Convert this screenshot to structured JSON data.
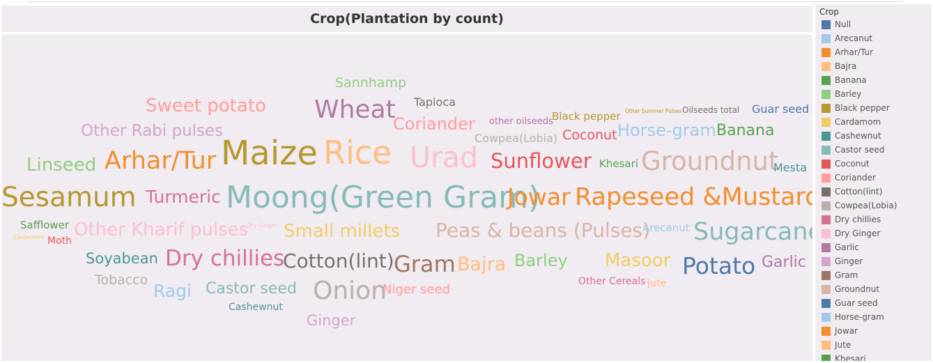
{
  "chart_data": {
    "type": "wordcloud",
    "title": "Crop(Plantation by count)",
    "words": [
      {
        "text": "Sannhamp",
        "color": "#8cd17d"
      },
      {
        "text": "Tapioca",
        "color": "#79706e"
      },
      {
        "text": "Sweet potato",
        "color": "#ff9d9a"
      },
      {
        "text": "Wheat",
        "color": "#b07aa1"
      },
      {
        "text": "Coriander",
        "color": "#ff9d9a"
      },
      {
        "text": "other oilseeds",
        "color": "#b07aa1"
      },
      {
        "text": "Black pepper",
        "color": "#b6992d"
      },
      {
        "text": "Other Summer Pulses",
        "color": "#b6992d"
      },
      {
        "text": "Oilseeds total",
        "color": "#79706e"
      },
      {
        "text": "Guar seed",
        "color": "#4e79a7"
      },
      {
        "text": "Other Rabi pulses",
        "color": "#d4a6c8"
      },
      {
        "text": "Cowpea(Lobia)",
        "color": "#bab0ac"
      },
      {
        "text": "Coconut",
        "color": "#e15759"
      },
      {
        "text": "Horse-gram",
        "color": "#a0cbe8"
      },
      {
        "text": "Banana",
        "color": "#59a14f"
      },
      {
        "text": "Linseed",
        "color": "#8cd17d"
      },
      {
        "text": "Arhar/Tur",
        "color": "#f28e2b"
      },
      {
        "text": "Maize",
        "color": "#b6992d"
      },
      {
        "text": "Rice",
        "color": "#ffbe7d"
      },
      {
        "text": "Urad",
        "color": "#fabfd2"
      },
      {
        "text": "Sunflower",
        "color": "#e15759"
      },
      {
        "text": "Khesari",
        "color": "#59a14f"
      },
      {
        "text": "Groundnut",
        "color": "#d7b5a6"
      },
      {
        "text": "Mesta",
        "color": "#499894"
      },
      {
        "text": "Sesamum",
        "color": "#b6992d"
      },
      {
        "text": "Turmeric",
        "color": "#d37295"
      },
      {
        "text": "Moong(Green Gram)",
        "color": "#86bcb6"
      },
      {
        "text": "Jowar",
        "color": "#f28e2b"
      },
      {
        "text": "Rapeseed &Mustard",
        "color": "#f28e2b"
      },
      {
        "text": "Safflower",
        "color": "#59a14f"
      },
      {
        "text": "Cardamom",
        "color": "#f1ce63"
      },
      {
        "text": "Moth",
        "color": "#e15759"
      },
      {
        "text": "Other Kharif pulses",
        "color": "#fabfd2"
      },
      {
        "text": "Dry Ginger",
        "color": "#fabfd2"
      },
      {
        "text": "Small millets",
        "color": "#f1ce63"
      },
      {
        "text": "Peas & beans (Pulses)",
        "color": "#d7b5a6"
      },
      {
        "text": "Arecanut",
        "color": "#a0cbe8"
      },
      {
        "text": "Sugarcane",
        "color": "#86bcb6"
      },
      {
        "text": "Soyabean",
        "color": "#499894"
      },
      {
        "text": "Dry chillies",
        "color": "#d37295"
      },
      {
        "text": "Cotton(lint)",
        "color": "#79706e"
      },
      {
        "text": "Gram",
        "color": "#9d7660"
      },
      {
        "text": "Bajra",
        "color": "#ffbe7d"
      },
      {
        "text": "Barley",
        "color": "#8cd17d"
      },
      {
        "text": "Masoor",
        "color": "#f1ce63"
      },
      {
        "text": "Potato",
        "color": "#4e79a7"
      },
      {
        "text": "Garlic",
        "color": "#b07aa1"
      },
      {
        "text": "Tobacco",
        "color": "#bab0ac"
      },
      {
        "text": "Ragi",
        "color": "#a0cbe8"
      },
      {
        "text": "Castor seed",
        "color": "#86bcb6"
      },
      {
        "text": "Onion",
        "color": "#bab0ac"
      },
      {
        "text": "Niger seed",
        "color": "#ff9d9a"
      },
      {
        "text": "Other Cereals",
        "color": "#d37295"
      },
      {
        "text": "Jute",
        "color": "#ffbe7d"
      },
      {
        "text": "Cashewnut",
        "color": "#499894"
      },
      {
        "text": "Ginger",
        "color": "#d4a6c8"
      }
    ],
    "legend": {
      "title": "Crop",
      "placement": "right",
      "items": [
        {
          "label": "Null",
          "color": "#4e79a7"
        },
        {
          "label": "Arecanut",
          "color": "#a0cbe8"
        },
        {
          "label": "Arhar/Tur",
          "color": "#f28e2b"
        },
        {
          "label": "Bajra",
          "color": "#ffbe7d"
        },
        {
          "label": "Banana",
          "color": "#59a14f"
        },
        {
          "label": "Barley",
          "color": "#8cd17d"
        },
        {
          "label": "Black pepper",
          "color": "#b6992d"
        },
        {
          "label": "Cardamom",
          "color": "#f1ce63"
        },
        {
          "label": "Cashewnut",
          "color": "#499894"
        },
        {
          "label": "Castor seed",
          "color": "#86bcb6"
        },
        {
          "label": "Coconut",
          "color": "#e15759"
        },
        {
          "label": "Coriander",
          "color": "#ff9d9a"
        },
        {
          "label": "Cotton(lint)",
          "color": "#79706e"
        },
        {
          "label": "Cowpea(Lobia)",
          "color": "#bab0ac"
        },
        {
          "label": "Dry chillies",
          "color": "#d37295"
        },
        {
          "label": "Dry Ginger",
          "color": "#fabfd2"
        },
        {
          "label": "Garlic",
          "color": "#b07aa1"
        },
        {
          "label": "Ginger",
          "color": "#d4a6c8"
        },
        {
          "label": "Gram",
          "color": "#9d7660"
        },
        {
          "label": "Groundnut",
          "color": "#d7b5a6"
        },
        {
          "label": "Guar seed",
          "color": "#4e79a7"
        },
        {
          "label": "Horse-gram",
          "color": "#a0cbe8"
        },
        {
          "label": "Jowar",
          "color": "#f28e2b"
        },
        {
          "label": "Jute",
          "color": "#ffbe7d"
        },
        {
          "label": "Khesari",
          "color": "#59a14f"
        }
      ]
    }
  }
}
